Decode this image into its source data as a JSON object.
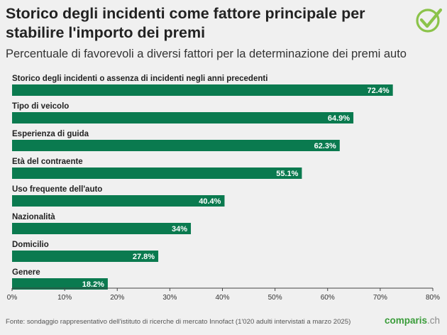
{
  "title": "Storico degli incidenti come fattore principale per stabilire l'importo dei premi",
  "subtitle": "Percentuale di favorevoli a diversi fattori per la determinazione dei premi auto",
  "footer": "Fonte: sondaggio rappresentativo dell'istituto di ricerche di mercato Innofact (1'020 adulti intervistati a marzo 2025)",
  "brand": {
    "name": "comparis",
    "suffix": ".ch"
  },
  "logo_icon": "checkmark-circle-icon",
  "colors": {
    "bar": "#0a7a4f",
    "brand": "#3a9c3a",
    "background": "#f0f0f0"
  },
  "chart_data": {
    "type": "bar",
    "orientation": "horizontal",
    "categories": [
      "Storico degli incidenti o assenza di incidenti negli anni precedenti",
      "Tipo di veicolo",
      "Esperienza di guida",
      "Età del contraente",
      "Uso frequente dell'auto",
      "Nazionalità",
      "Domicilio",
      "Genere"
    ],
    "values": [
      72.4,
      64.9,
      62.3,
      55.1,
      40.4,
      34,
      27.8,
      18.2
    ],
    "value_labels": [
      "72.4%",
      "64.9%",
      "62.3%",
      "55.1%",
      "40.4%",
      "34%",
      "27.8%",
      "18.2%"
    ],
    "xlim": [
      0,
      80
    ],
    "ticks": [
      0,
      10,
      20,
      30,
      40,
      50,
      60,
      70,
      80
    ],
    "tick_labels": [
      "0%",
      "10%",
      "20%",
      "30%",
      "40%",
      "50%",
      "60%",
      "70%",
      "80%"
    ],
    "grid": false,
    "legend": "none"
  }
}
